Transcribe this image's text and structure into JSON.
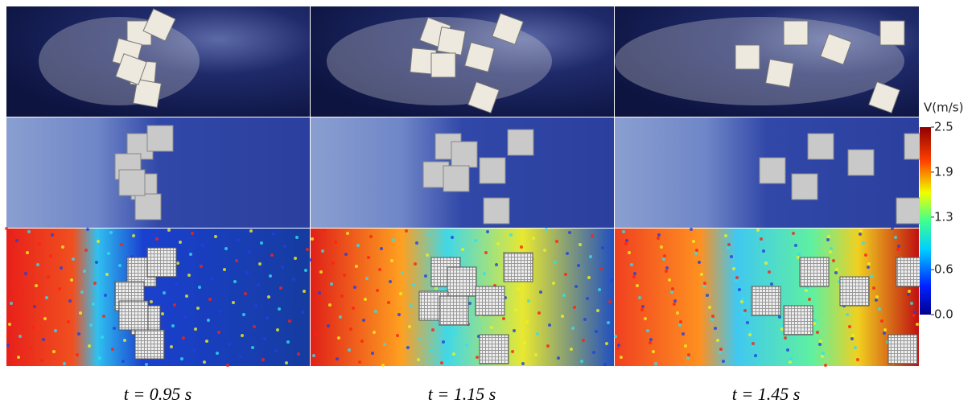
{
  "colorbar": {
    "title": "V(m/s)",
    "range": [
      0,
      2.5
    ],
    "ticks": [
      {
        "value": 0,
        "label": "0.0"
      },
      0.6,
      1.3,
      1.9,
      2.5
    ]
  },
  "panels": [
    {
      "label": "t = 0.95 s"
    },
    {
      "label": "t = 1.15 s"
    },
    {
      "label": "t = 1.45 s"
    }
  ]
}
